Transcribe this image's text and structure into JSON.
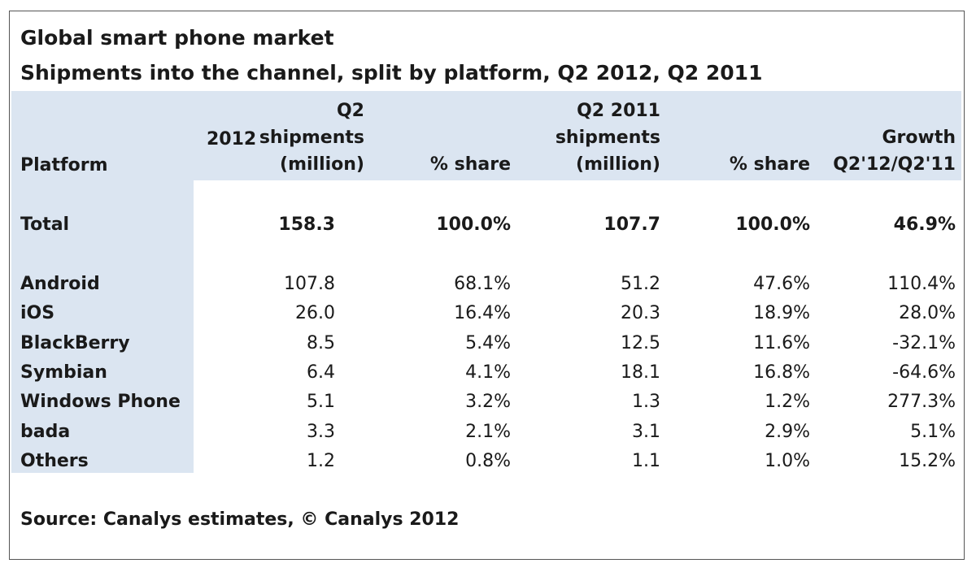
{
  "chart_data": {
    "type": "table",
    "title": "Global smart phone market",
    "subtitle": "Shipments into the channel, split by platform, Q2 2012, Q2 2011",
    "headers": {
      "platform": "Platform",
      "q2_2012_prefix": "2012",
      "q2_2012_lines": [
        "Q2",
        "shipments",
        "(million)"
      ],
      "share_2012": "% share",
      "q2_2011_lines": [
        "Q2 2011",
        "shipments",
        "(million)"
      ],
      "share_2011": "% share",
      "growth_lines": [
        "Growth",
        "Q2'12/Q2'11"
      ]
    },
    "total": {
      "label": "Total",
      "values": [
        "158.3",
        "100.0%",
        "107.7",
        "100.0%",
        "46.9%"
      ]
    },
    "rows": [
      {
        "label": "Android",
        "values": [
          "107.8",
          "68.1%",
          "51.2",
          "47.6%",
          "110.4%"
        ]
      },
      {
        "label": "iOS",
        "values": [
          "26.0",
          "16.4%",
          "20.3",
          "18.9%",
          "28.0%"
        ]
      },
      {
        "label": "BlackBerry",
        "values": [
          "8.5",
          "5.4%",
          "12.5",
          "11.6%",
          "-32.1%"
        ]
      },
      {
        "label": "Symbian",
        "values": [
          "6.4",
          "4.1%",
          "18.1",
          "16.8%",
          "-64.6%"
        ]
      },
      {
        "label": "Windows Phone",
        "values": [
          "5.1",
          "3.2%",
          "1.3",
          "1.2%",
          "277.3%"
        ]
      },
      {
        "label": "bada",
        "values": [
          "3.3",
          "2.1%",
          "3.1",
          "2.9%",
          "5.1%"
        ]
      },
      {
        "label": "Others",
        "values": [
          "1.2",
          "0.8%",
          "1.1",
          "1.0%",
          "15.2%"
        ]
      }
    ],
    "source": "Source: Canalys estimates, © Canalys 2012",
    "colors": {
      "header_band": "#dbe5f1",
      "text": "#1a1a1a",
      "frame": "#555555"
    }
  }
}
